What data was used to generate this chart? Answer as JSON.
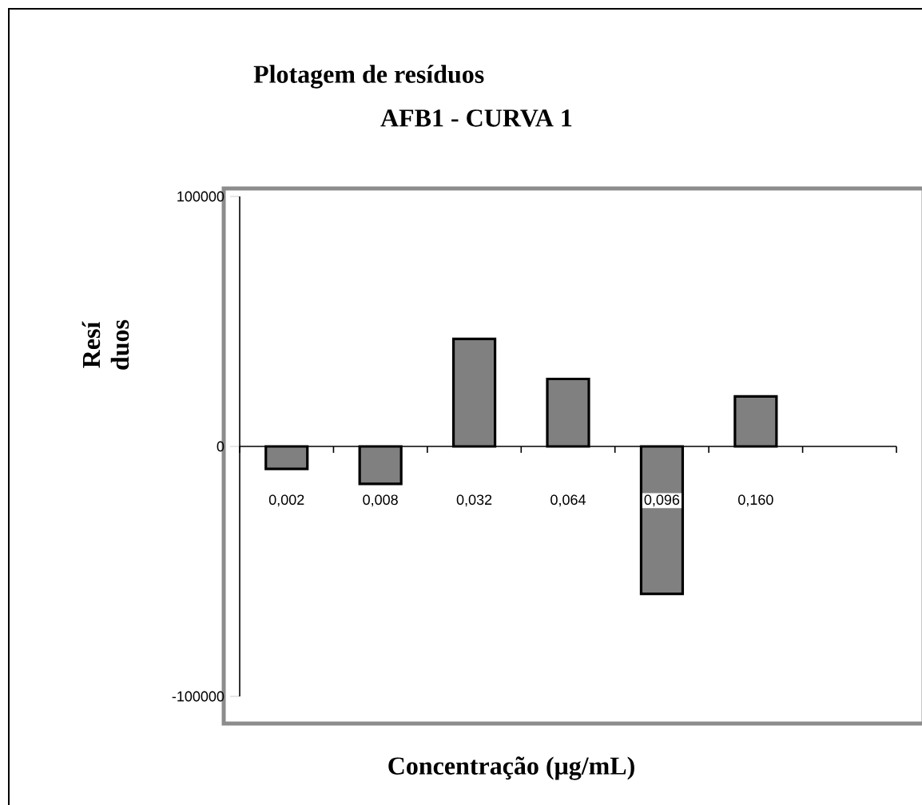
{
  "chart_data": {
    "type": "bar",
    "title": "Plotagem de resíduos",
    "subtitle": "AFB1 - CURVA 1",
    "xlabel": "Concentração (μg/mL)",
    "ylabel": "Resí duos",
    "categories": [
      "0,002",
      "0,008",
      "0,032",
      "0,064",
      "0,096",
      "0,160",
      null
    ],
    "values": [
      -9000,
      -15000,
      43000,
      27000,
      -59000,
      20000,
      null
    ],
    "color": "#808080",
    "ylim": [
      -100000,
      100000
    ],
    "yticks": [
      -100000,
      0,
      100000
    ]
  }
}
